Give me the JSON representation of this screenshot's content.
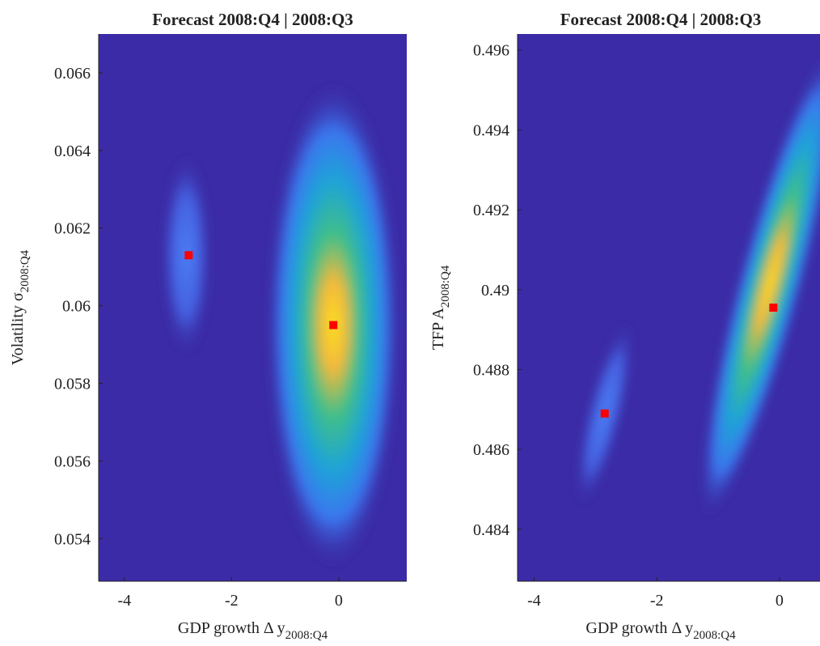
{
  "chart_data": [
    {
      "type": "scatter",
      "title": "Forecast 2008:Q4 | 2008:Q3",
      "xlabel": "GDP growth Δ y",
      "xlabel_sub": "2008:Q4",
      "ylabel": "Volatility σ",
      "ylabel_sub": "2008:Q4",
      "x": [
        -2.8,
        -0.1
      ],
      "values": [
        0.0613,
        0.0595
      ],
      "color": "#ff0000",
      "background": "#3b2ba6",
      "xlim": [
        -4.48,
        1.27
      ],
      "xticks": [
        -4,
        -2,
        0
      ],
      "ylim": [
        0.0529,
        0.067
      ],
      "yticks": [
        0.054,
        0.056,
        0.058,
        0.06,
        0.062,
        0.064,
        0.066
      ]
    },
    {
      "type": "scatter",
      "title": "Forecast 2008:Q4 | 2008:Q3",
      "xlabel": "GDP growth Δ y",
      "xlabel_sub": "2008:Q4",
      "ylabel": "TFP A",
      "ylabel_sub": "2008:Q4",
      "x": [
        -2.85,
        -0.1
      ],
      "values": [
        0.4869,
        0.48955
      ],
      "color": "#ff0000",
      "background": "#3b2ba6",
      "xlim": [
        -4.27,
        0.66
      ],
      "xticks": [
        -4,
        -2,
        0
      ],
      "ylim": [
        0.4827,
        0.4964
      ],
      "yticks": [
        0.484,
        0.486,
        0.488,
        0.49,
        0.492,
        0.494,
        0.496
      ]
    }
  ]
}
